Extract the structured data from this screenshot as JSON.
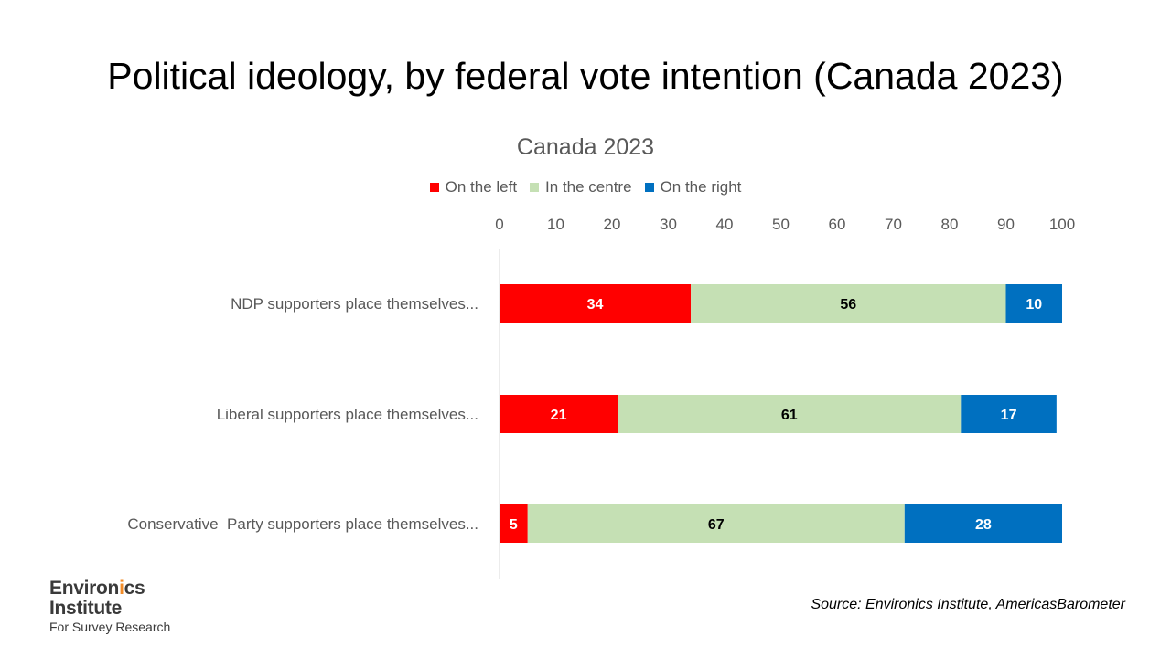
{
  "slide_title": "Political ideology, by federal vote intention (Canada 2023)",
  "source": "Source: Environics Institute, AmericasBarometer",
  "logo": {
    "line1_prefix": "Environ",
    "line1_accent": "i",
    "line1_suffix": "cs",
    "line2": "Institute",
    "line3": "For Survey Research"
  },
  "colors": {
    "left": "#ff0000",
    "centre": "#c5e0b4",
    "right": "#0070c0",
    "axis_text": "#595959"
  },
  "chart_data": {
    "type": "bar",
    "orientation": "horizontal",
    "stacked": true,
    "title": "Canada 2023",
    "categories": [
      "NDP supporters place themselves...",
      "Liberal supporters place themselves...",
      "Conservative  Party supporters place themselves..."
    ],
    "series": [
      {
        "name": "On the left",
        "values": [
          34,
          21,
          5
        ],
        "color": "#ff0000",
        "label_color": "#ffffff"
      },
      {
        "name": "In the centre",
        "values": [
          56,
          61,
          67
        ],
        "color": "#c5e0b4",
        "label_color": "#000000"
      },
      {
        "name": "On the right",
        "values": [
          10,
          17,
          28
        ],
        "color": "#0070c0",
        "label_color": "#ffffff"
      }
    ],
    "xlim": [
      0,
      100
    ],
    "x_ticks": [
      "0",
      "10",
      "20",
      "30",
      "40",
      "50",
      "60",
      "70",
      "80",
      "90",
      "100"
    ],
    "axis_position": "top",
    "legend_position": "top",
    "grid": false
  }
}
